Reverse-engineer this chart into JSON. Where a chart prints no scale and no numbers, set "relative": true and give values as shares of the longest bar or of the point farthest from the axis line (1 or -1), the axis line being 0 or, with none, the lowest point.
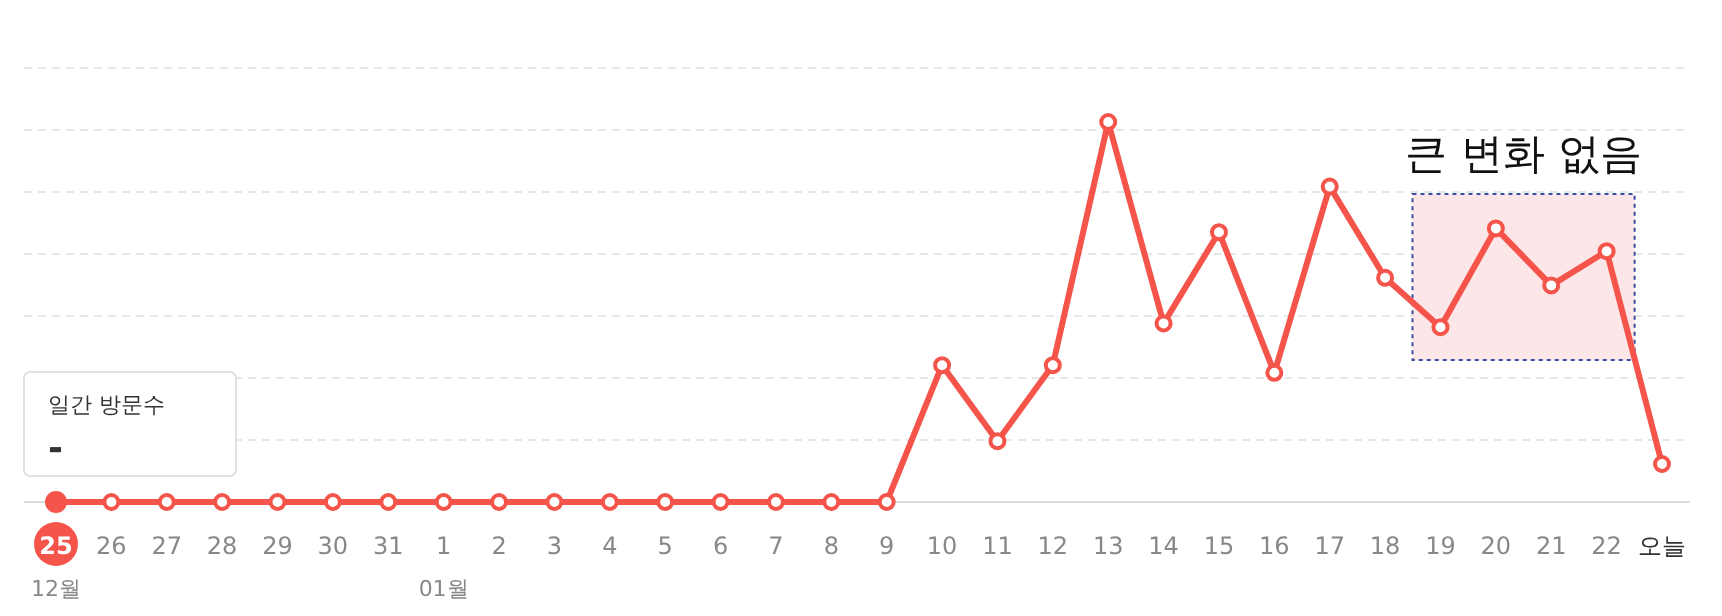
{
  "chart_data": {
    "type": "line",
    "relative": true,
    "grid": "y",
    "marker": "circle",
    "line_style": "solid",
    "categories": [
      "25\n12월",
      "26",
      "27",
      "28",
      "29",
      "30",
      "31",
      "1\n01월",
      "2",
      "3",
      "4",
      "5",
      "6",
      "7",
      "8",
      "9",
      "10",
      "11",
      "12",
      "13",
      "14",
      "15",
      "16",
      "17",
      "18",
      "19",
      "20",
      "21",
      "22",
      "오늘"
    ],
    "series": [
      {
        "color": "#f4544a",
        "values": [
          0,
          0,
          0,
          0,
          0,
          0,
          0,
          0,
          0,
          0,
          0,
          0,
          0,
          0,
          0,
          0,
          0.36,
          0.16,
          0.36,
          1,
          0.47,
          0.71,
          0.34,
          0.83,
          0.59,
          0.46,
          0.72,
          0.57,
          0.66,
          0.1
        ]
      }
    ],
    "bands": [
      {
        "axis": "x",
        "from": "19",
        "to": "22",
        "label": "큰 변화 없음",
        "color": "#fde6e8"
      }
    ],
    "annotations": [
      "일간 방문수",
      "-"
    ]
  }
}
